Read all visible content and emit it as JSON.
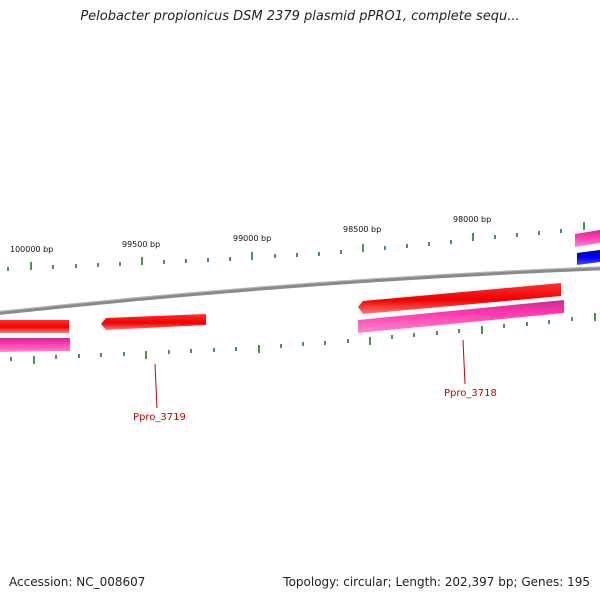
{
  "title": "Pelobacter propionicus DSM 2379 plasmid pPRO1, complete sequ...",
  "footer": {
    "accession": "Accession: NC_008607",
    "summary": "Topology: circular; Length: 202,397 bp; Genes: 195"
  },
  "scale_labels": [
    "100000 bp",
    "99500 bp",
    "99000 bp",
    "98500 bp",
    "98000 bp"
  ],
  "gene_labels": [
    "Ppro_3719",
    "Ppro_3718"
  ],
  "colors": {
    "backbone": "#808080",
    "cds": "#ff0000",
    "gene": "#ff44aa",
    "blue_feature": "#0000ee",
    "ticks": "#1a7a1a",
    "label": "#cc0000"
  }
}
